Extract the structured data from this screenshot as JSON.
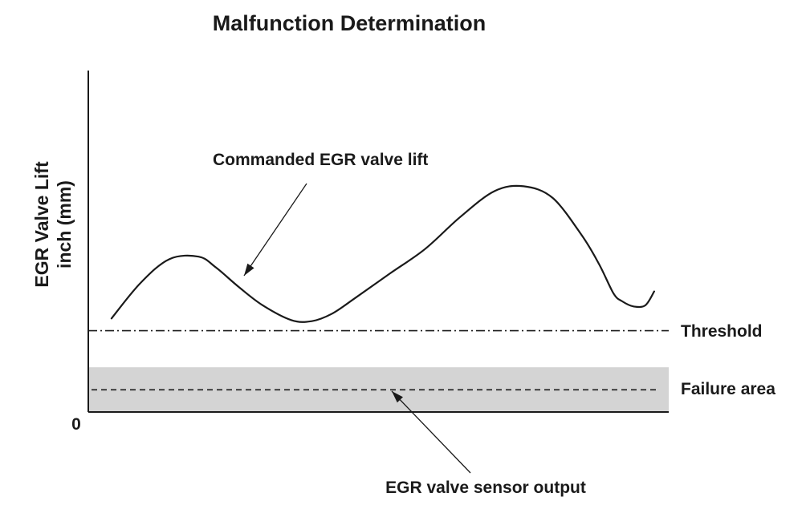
{
  "chart_data": {
    "type": "line",
    "title": "Malfunction Determination",
    "ylabel": [
      "EGR Valve Lift",
      "inch (mm)"
    ],
    "xlabel": "",
    "origin_label": "0",
    "ylim": [
      0,
      100
    ],
    "xlim": [
      0,
      100
    ],
    "grid": false,
    "series": [
      {
        "name": "Commanded EGR valve lift",
        "style": "solid",
        "x": [
          4,
          9,
          14,
          19,
          22,
          26,
          30,
          35,
          38.5,
          42,
          46,
          52,
          58,
          64,
          70,
          75,
          80,
          85,
          88,
          90.5,
          92,
          94,
          96,
          97.5
        ],
        "y": [
          27.4,
          37.8,
          44.8,
          45.5,
          42.3,
          36.5,
          31.3,
          26.9,
          26.6,
          28.8,
          33.4,
          40.6,
          47.7,
          57.0,
          64.7,
          66.1,
          62.7,
          51.8,
          43.3,
          34.7,
          32.4,
          30.9,
          31.3,
          35.3
        ]
      },
      {
        "name": "Threshold",
        "style": "dash-dot",
        "x": [
          0,
          100
        ],
        "y": [
          23.8,
          23.8
        ]
      },
      {
        "name": "EGR valve sensor output",
        "style": "dashed",
        "x": [
          0,
          100
        ],
        "y": [
          6.5,
          6.5
        ]
      }
    ],
    "bands": [
      {
        "name": "Failure area",
        "y_from": 0,
        "y_to": 13.1,
        "color": "#d4d4d4"
      }
    ],
    "annotations": [
      {
        "text": "Commanded EGR valve lift",
        "points_to_series": "Commanded EGR valve lift"
      },
      {
        "text": "EGR valve sensor output",
        "points_to_series": "EGR valve sensor output"
      }
    ],
    "colors": {
      "line": "#1a1a1a",
      "band": "#d4d4d4",
      "background": "#ffffff"
    }
  }
}
